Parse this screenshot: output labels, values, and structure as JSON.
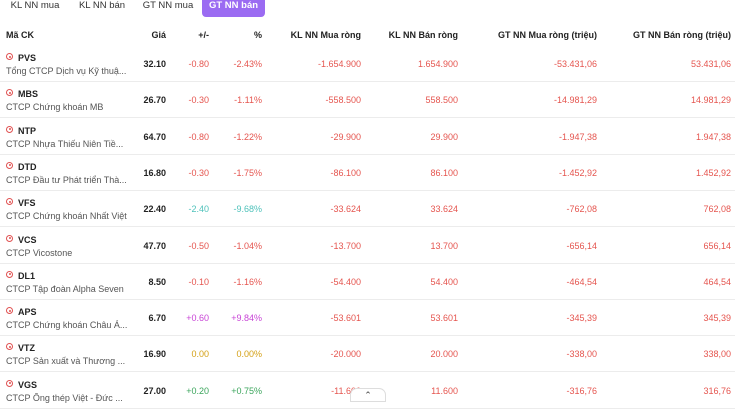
{
  "tabs": [
    {
      "label": "KL NN mua",
      "active": false
    },
    {
      "label": "KL NN bán",
      "active": false
    },
    {
      "label": "GT NN mua",
      "active": false
    },
    {
      "label": "GT NN bán",
      "active": true
    }
  ],
  "headers": {
    "symbol": "Mã CK",
    "price": "Giá",
    "change": "+/-",
    "percent": "%",
    "kl_buy": "KL NN Mua ròng",
    "kl_sell": "KL NN Bán ròng",
    "gt_buy": "GT NN Mua ròng (triệu)",
    "gt_sell": "GT NN Bán ròng (triệu)"
  },
  "colors": {
    "down": "#e5554f",
    "up": "#4fc2bb",
    "ceiling": "#c844d6",
    "ref": "#d4a015",
    "green": "#3ba55c"
  },
  "rows": [
    {
      "symbol": "PVS",
      "name": "Tổng CTCP Dịch vụ Kỹ thuậ...",
      "price": "32.10",
      "change": "-0.80",
      "percent": "-2.43%",
      "kl_buy": "-1.654.900",
      "kl_sell": "1.654.900",
      "gt_buy": "-53.431,06",
      "gt_sell": "53.431,06",
      "color": "down"
    },
    {
      "symbol": "MBS",
      "name": "CTCP Chứng khoán MB",
      "price": "26.70",
      "change": "-0.30",
      "percent": "-1.11%",
      "kl_buy": "-558.500",
      "kl_sell": "558.500",
      "gt_buy": "-14.981,29",
      "gt_sell": "14.981,29",
      "color": "down"
    },
    {
      "symbol": "NTP",
      "name": "CTCP Nhựa Thiếu Niên Tiề...",
      "price": "64.70",
      "change": "-0.80",
      "percent": "-1.22%",
      "kl_buy": "-29.900",
      "kl_sell": "29.900",
      "gt_buy": "-1.947,38",
      "gt_sell": "1.947,38",
      "color": "down"
    },
    {
      "symbol": "DTD",
      "name": "CTCP Đầu tư Phát triển Thà...",
      "price": "16.80",
      "change": "-0.30",
      "percent": "-1.75%",
      "kl_buy": "-86.100",
      "kl_sell": "86.100",
      "gt_buy": "-1.452,92",
      "gt_sell": "1.452,92",
      "color": "down"
    },
    {
      "symbol": "VFS",
      "name": "CTCP Chứng khoán Nhất Việt",
      "price": "22.40",
      "change": "-2.40",
      "percent": "-9.68%",
      "kl_buy": "-33.624",
      "kl_sell": "33.624",
      "gt_buy": "-762,08",
      "gt_sell": "762,08",
      "color": "up"
    },
    {
      "symbol": "VCS",
      "name": "CTCP Vicostone",
      "price": "47.70",
      "change": "-0.50",
      "percent": "-1.04%",
      "kl_buy": "-13.700",
      "kl_sell": "13.700",
      "gt_buy": "-656,14",
      "gt_sell": "656,14",
      "color": "down"
    },
    {
      "symbol": "DL1",
      "name": "CTCP Tập đoàn Alpha Seven",
      "price": "8.50",
      "change": "-0.10",
      "percent": "-1.16%",
      "kl_buy": "-54.400",
      "kl_sell": "54.400",
      "gt_buy": "-464,54",
      "gt_sell": "464,54",
      "color": "down"
    },
    {
      "symbol": "APS",
      "name": "CTCP Chứng khoán Châu Á...",
      "price": "6.70",
      "change": "+0.60",
      "percent": "+9.84%",
      "kl_buy": "-53.601",
      "kl_sell": "53.601",
      "gt_buy": "-345,39",
      "gt_sell": "345,39",
      "color": "ceiling"
    },
    {
      "symbol": "VTZ",
      "name": "CTCP Sản xuất và Thương ...",
      "price": "16.90",
      "change": "0.00",
      "percent": "0.00%",
      "kl_buy": "-20.000",
      "kl_sell": "20.000",
      "gt_buy": "-338,00",
      "gt_sell": "338,00",
      "color": "ref"
    },
    {
      "symbol": "VGS",
      "name": "CTCP Ống thép Việt - Đức ...",
      "price": "27.00",
      "change": "+0.20",
      "percent": "+0.75%",
      "kl_buy": "-11.600",
      "kl_sell": "11.600",
      "gt_buy": "-316,76",
      "gt_sell": "316,76",
      "color": "green"
    }
  ],
  "scroll_up_icon": "chevron-up-icon"
}
